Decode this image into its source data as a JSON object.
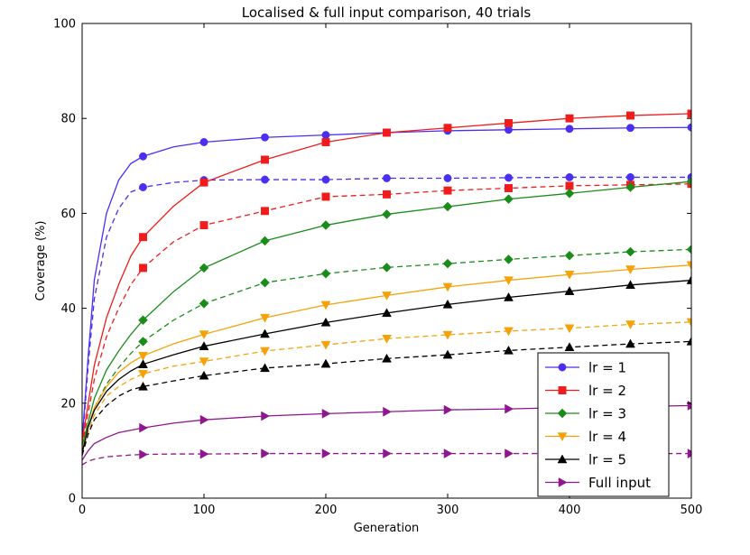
{
  "chart_data": {
    "type": "line",
    "title": "Localised & full input comparison, 40 trials",
    "xlabel": "Generation",
    "ylabel": "Coverage (%)",
    "xlim": [
      0,
      500
    ],
    "ylim": [
      0,
      100
    ],
    "xticks": [
      0,
      100,
      200,
      300,
      400,
      500
    ],
    "yticks": [
      0,
      20,
      40,
      60,
      80,
      100
    ],
    "grid": false,
    "legend_position": "lower-right",
    "marker_x": [
      50,
      100,
      150,
      200,
      250,
      300,
      350,
      400,
      450,
      500
    ],
    "series": [
      {
        "name": "lr = 1",
        "color": "#4b2ff0",
        "marker": "circle",
        "linestyle": "solid",
        "x": [
          0,
          5,
          10,
          20,
          30,
          40,
          50,
          75,
          100,
          150,
          200,
          250,
          300,
          350,
          400,
          450,
          500
        ],
        "y": [
          12,
          30,
          46,
          60,
          67,
          70.5,
          72,
          74,
          75,
          76,
          76.5,
          77,
          77.4,
          77.6,
          77.8,
          78,
          78.1
        ]
      },
      {
        "name": "lr = 1 (localised)",
        "color": "#4b2ff0",
        "marker": "circle",
        "linestyle": "dashed",
        "x": [
          0,
          5,
          10,
          20,
          30,
          40,
          50,
          75,
          100,
          150,
          200,
          250,
          300,
          350,
          400,
          450,
          500
        ],
        "y": [
          11,
          28,
          42,
          55,
          61,
          64.5,
          65.5,
          66.5,
          67,
          67.1,
          67.1,
          67.4,
          67.4,
          67.5,
          67.6,
          67.6,
          67.6
        ]
      },
      {
        "name": "lr = 2",
        "color": "#f01c1c",
        "marker": "square",
        "linestyle": "solid",
        "x": [
          0,
          5,
          10,
          20,
          30,
          40,
          50,
          75,
          100,
          150,
          200,
          250,
          300,
          350,
          400,
          450,
          500
        ],
        "y": [
          12,
          20,
          28,
          38,
          45,
          51,
          55,
          61.5,
          66.5,
          71.3,
          75,
          77,
          78,
          79,
          80,
          80.6,
          81
        ]
      },
      {
        "name": "lr = 2 (localised)",
        "color": "#f01c1c",
        "marker": "square",
        "linestyle": "dashed",
        "x": [
          0,
          5,
          10,
          20,
          30,
          40,
          50,
          75,
          100,
          150,
          200,
          250,
          300,
          350,
          400,
          450,
          500
        ],
        "y": [
          11,
          18,
          25,
          34,
          40,
          45,
          48.5,
          54,
          57.5,
          60.5,
          63.5,
          64,
          64.8,
          65.3,
          65.8,
          66,
          66.2
        ]
      },
      {
        "name": "lr = 3",
        "color": "#1a8c1a",
        "marker": "diamond",
        "linestyle": "solid",
        "x": [
          0,
          5,
          10,
          20,
          30,
          40,
          50,
          75,
          100,
          150,
          200,
          250,
          300,
          350,
          400,
          450,
          500
        ],
        "y": [
          11,
          16,
          21,
          27,
          31,
          34.5,
          37.5,
          43.5,
          48.5,
          54.2,
          57.5,
          59.8,
          61.4,
          63,
          64.2,
          65.5,
          66.7
        ]
      },
      {
        "name": "lr = 3 (localised)",
        "color": "#1a8c1a",
        "marker": "diamond",
        "linestyle": "dashed",
        "x": [
          0,
          5,
          10,
          20,
          30,
          40,
          50,
          75,
          100,
          150,
          200,
          250,
          300,
          350,
          400,
          450,
          500
        ],
        "y": [
          10,
          15,
          19,
          24,
          27.5,
          30.5,
          33,
          37.5,
          41,
          45.4,
          47.3,
          48.6,
          49.4,
          50.3,
          51.1,
          51.9,
          52.4
        ]
      },
      {
        "name": "lr = 4",
        "color": "#f5a20a",
        "marker": "triangle-down",
        "linestyle": "solid",
        "x": [
          0,
          5,
          10,
          20,
          30,
          40,
          50,
          75,
          100,
          150,
          200,
          250,
          300,
          350,
          400,
          450,
          500
        ],
        "y": [
          10,
          15,
          19,
          23.5,
          26.5,
          28.5,
          30,
          32.5,
          34.5,
          38,
          40.7,
          42.7,
          44.5,
          45.9,
          47.1,
          48.2,
          49.1
        ]
      },
      {
        "name": "lr = 4 (localised)",
        "color": "#f5a20a",
        "marker": "triangle-down",
        "linestyle": "dashed",
        "x": [
          0,
          5,
          10,
          20,
          30,
          40,
          50,
          75,
          100,
          150,
          200,
          250,
          300,
          350,
          400,
          450,
          500
        ],
        "y": [
          9.5,
          14,
          17.5,
          21.5,
          23.5,
          25,
          26.2,
          27.8,
          28.8,
          31,
          32.3,
          33.6,
          34.4,
          35.2,
          35.8,
          36.6,
          37.1
        ]
      },
      {
        "name": "lr = 5",
        "color": "#000000",
        "marker": "triangle-up",
        "linestyle": "solid",
        "x": [
          0,
          5,
          10,
          20,
          30,
          40,
          50,
          75,
          100,
          150,
          200,
          250,
          300,
          350,
          400,
          450,
          500
        ],
        "y": [
          9.5,
          15,
          18.5,
          22.5,
          25,
          26.8,
          28.2,
          30.2,
          32,
          34.6,
          37,
          39,
          40.8,
          42.3,
          43.6,
          44.9,
          45.9
        ]
      },
      {
        "name": "lr = 5 (localised)",
        "color": "#000000",
        "marker": "triangle-up",
        "linestyle": "dashed",
        "x": [
          0,
          5,
          10,
          20,
          30,
          40,
          50,
          75,
          100,
          150,
          200,
          250,
          300,
          350,
          400,
          450,
          500
        ],
        "y": [
          9,
          13.5,
          16.5,
          19.5,
          21.5,
          22.8,
          23.5,
          24.7,
          25.8,
          27.4,
          28.3,
          29.4,
          30.2,
          31.1,
          31.8,
          32.5,
          33
        ]
      },
      {
        "name": "Full input",
        "color": "#8e168e",
        "marker": "triangle-right",
        "linestyle": "solid",
        "x": [
          0,
          5,
          10,
          20,
          30,
          40,
          50,
          75,
          100,
          150,
          200,
          250,
          300,
          350,
          400,
          450,
          500
        ],
        "y": [
          8,
          10,
          11.5,
          12.8,
          13.8,
          14.3,
          14.8,
          15.8,
          16.5,
          17.3,
          17.8,
          18.2,
          18.6,
          18.8,
          19.1,
          19.3,
          19.5
        ]
      },
      {
        "name": "Full input (localised)",
        "color": "#8e168e",
        "marker": "triangle-right",
        "linestyle": "dashed",
        "x": [
          0,
          5,
          10,
          20,
          30,
          40,
          50,
          75,
          100,
          150,
          200,
          250,
          300,
          350,
          400,
          450,
          500
        ],
        "y": [
          7,
          7.8,
          8.2,
          8.7,
          8.9,
          9.1,
          9.2,
          9.3,
          9.3,
          9.4,
          9.4,
          9.4,
          9.4,
          9.4,
          9.4,
          9.4,
          9.4
        ]
      }
    ],
    "legend": [
      {
        "label": "lr = 1",
        "color": "#4b2ff0",
        "marker": "circle"
      },
      {
        "label": "lr = 2",
        "color": "#f01c1c",
        "marker": "square"
      },
      {
        "label": "lr = 3",
        "color": "#1a8c1a",
        "marker": "diamond"
      },
      {
        "label": "lr = 4",
        "color": "#f5a20a",
        "marker": "triangle-down"
      },
      {
        "label": "lr = 5",
        "color": "#000000",
        "marker": "triangle-up"
      },
      {
        "label": "Full input",
        "color": "#8e168e",
        "marker": "triangle-right"
      }
    ]
  }
}
